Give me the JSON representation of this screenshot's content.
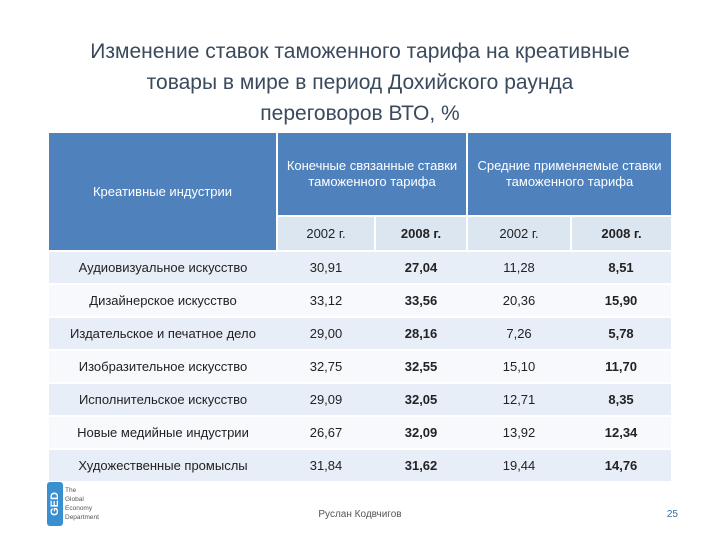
{
  "title": {
    "line1": "Изменение ставок таможенного тарифа на креативные",
    "line2": "товары в мире в период Дохийского раунда",
    "line3": "переговоров ВТО, %"
  },
  "table": {
    "industry_header": "Креативные индустрии",
    "groups": [
      "Конечные связанные ставки таможенного тарифа",
      "Средние применяемые ставки таможенного тарифа"
    ],
    "years": [
      "2002 г.",
      "2008 г.",
      "2002 г.",
      "2008 г."
    ],
    "rows": [
      {
        "industry": "Аудиовизуальное искусство",
        "values": [
          "30,91",
          "27,04",
          "11,28",
          "8,51"
        ]
      },
      {
        "industry": "Дизайнерское искусство",
        "values": [
          "33,12",
          "33,56",
          "20,36",
          "15,90"
        ]
      },
      {
        "industry": "Издательское и печатное дело",
        "values": [
          "29,00",
          "28,16",
          "7,26",
          "5,78"
        ]
      },
      {
        "industry": "Изобразительное искусство",
        "values": [
          "32,75",
          "32,55",
          "15,10",
          "11,70"
        ]
      },
      {
        "industry": "Исполнительское искусство",
        "values": [
          "29,09",
          "32,05",
          "12,71",
          "8,35"
        ]
      },
      {
        "industry": "Новые медийные индустрии",
        "values": [
          "26,67",
          "32,09",
          "13,92",
          "12,34"
        ]
      },
      {
        "industry": "Художественные промыслы",
        "values": [
          "31,84",
          "31,62",
          "19,44",
          "14,76"
        ]
      }
    ]
  },
  "footer": {
    "author": "Руслан Кодвчигов",
    "page": "25"
  },
  "logo": {
    "mark": "GED",
    "lines": [
      "The",
      "Global",
      "Economy",
      "Department"
    ],
    "color": "#3a8fd0"
  }
}
